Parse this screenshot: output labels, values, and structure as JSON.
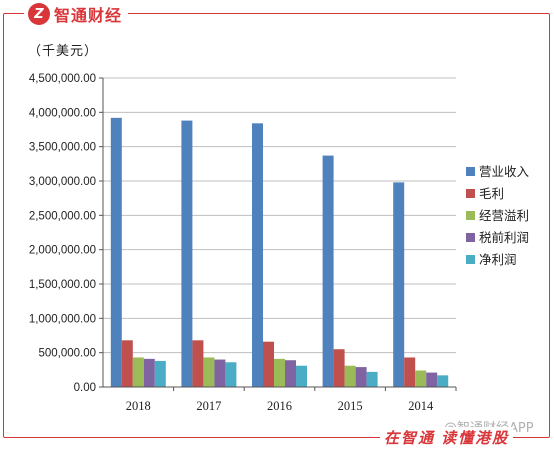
{
  "brand": {
    "name": "智通财经",
    "badge": "Z"
  },
  "slogan": "在智通 读懂港股",
  "watermark": "@智通财经APP",
  "chart_data": {
    "type": "bar",
    "unit": "（千美元）",
    "categories": [
      "2018",
      "2017",
      "2016",
      "2015",
      "2014"
    ],
    "ylim": [
      0,
      4500000
    ],
    "ytick_step": 500000,
    "ytick_labels": [
      "0.00",
      "500,000.00",
      "1,000,000.00",
      "1,500,000.00",
      "2,000,000.00",
      "2,500,000.00",
      "3,000,000.00",
      "3,500,000.00",
      "4,000,000.00",
      "4,500,000.00"
    ],
    "legend_position": "right",
    "series": [
      {
        "name": "营业收入",
        "color": "#4f81bd",
        "values": [
          3920000,
          3880000,
          3840000,
          3370000,
          2980000
        ]
      },
      {
        "name": "毛利",
        "color": "#c0504d",
        "values": [
          680000,
          680000,
          660000,
          550000,
          430000
        ]
      },
      {
        "name": "经营溢利",
        "color": "#9bbb59",
        "values": [
          430000,
          430000,
          410000,
          310000,
          240000
        ]
      },
      {
        "name": "税前利润",
        "color": "#8064a2",
        "values": [
          410000,
          400000,
          390000,
          290000,
          210000
        ]
      },
      {
        "name": "净利润",
        "color": "#4bacc6",
        "values": [
          380000,
          360000,
          310000,
          220000,
          170000
        ]
      }
    ]
  }
}
